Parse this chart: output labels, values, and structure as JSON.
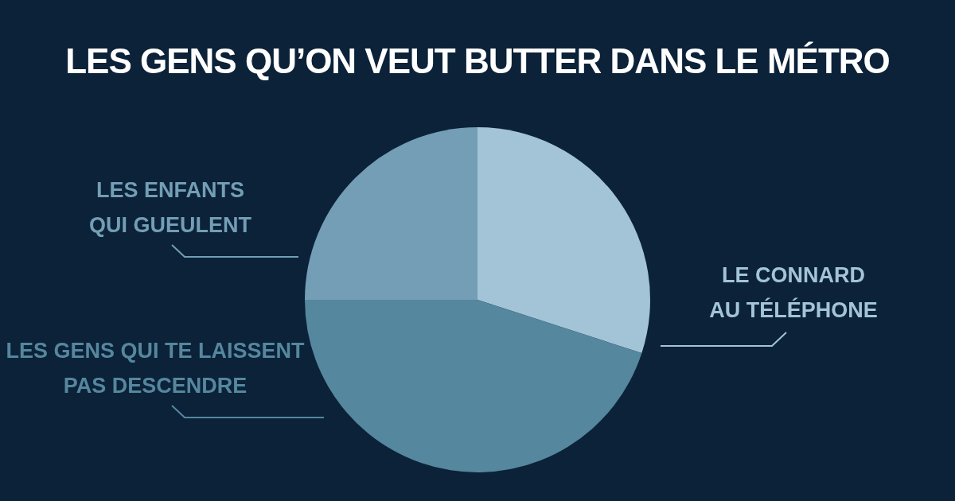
{
  "chart_data": {
    "type": "pie",
    "title": "LES GENS QU’ON VEUT BUTTER DANS LE MÉTRO",
    "categories": [
      "LE CONNARD AU TÉLÉPHONE",
      "LES GENS QUI TE LAISSENT PAS DESCENDRE",
      "LES ENFANTS QUI GUEULENT"
    ],
    "values": [
      30,
      45,
      25
    ],
    "colors": [
      "#a3c4d6",
      "#55879e",
      "#739eb5"
    ],
    "legend": false
  }
}
